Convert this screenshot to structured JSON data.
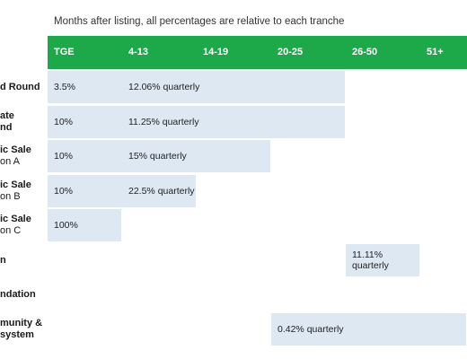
{
  "subtitle": "Months after listing, all percentages are relative to each tranche",
  "columns": [
    "TGE",
    "4-13",
    "14-19",
    "20-25",
    "26-50",
    "51+"
  ],
  "rows": [
    {
      "label_lines": [
        "d Round"
      ],
      "sub": ""
    },
    {
      "label_lines": [
        "ate",
        "nd"
      ],
      "sub": ""
    },
    {
      "label_lines": [
        "ic Sale"
      ],
      "sub": "on A"
    },
    {
      "label_lines": [
        "ic Sale"
      ],
      "sub": "on B"
    },
    {
      "label_lines": [
        "ic Sale"
      ],
      "sub": "on C"
    },
    {
      "label_lines": [
        "n"
      ],
      "sub": ""
    },
    {
      "label_lines": [
        "ndation"
      ],
      "sub": ""
    },
    {
      "label_lines": [
        "munity &",
        "system"
      ],
      "sub": ""
    }
  ],
  "colors": {
    "header": "#1da94a",
    "header_text": "#ffffff",
    "bar": "#dde8f3"
  },
  "chart_data": {
    "type": "table",
    "title": "",
    "subtitle": "Months after listing, all percentages are relative to each tranche",
    "columns": [
      "TGE",
      "4-13",
      "14-19",
      "20-25",
      "26-50",
      "51+"
    ],
    "rows": [
      {
        "row": "d Round",
        "bar_from_col": 0,
        "bar_to_col": 4,
        "cells": [
          {
            "col": 0,
            "text": "3.5%"
          },
          {
            "col": 1,
            "text": "12.06% quarterly"
          }
        ]
      },
      {
        "row": "ate nd",
        "bar_from_col": 0,
        "bar_to_col": 4,
        "cells": [
          {
            "col": 0,
            "text": "10%"
          },
          {
            "col": 1,
            "text": "11.25% quarterly"
          }
        ]
      },
      {
        "row": "ic Sale on A",
        "bar_from_col": 0,
        "bar_to_col": 3,
        "cells": [
          {
            "col": 0,
            "text": "10%"
          },
          {
            "col": 1,
            "text": "15% quarterly"
          }
        ]
      },
      {
        "row": "ic Sale on B",
        "bar_from_col": 0,
        "bar_to_col": 2,
        "cells": [
          {
            "col": 0,
            "text": "10%"
          },
          {
            "col": 1,
            "text": "22.5% quarterly"
          }
        ]
      },
      {
        "row": "ic Sale on C",
        "bar_from_col": 0,
        "bar_to_col": 1,
        "cells": [
          {
            "col": 0,
            "text": "100%"
          }
        ]
      },
      {
        "row": "n",
        "bar_from_col": 4,
        "bar_to_col": 5,
        "cells": [
          {
            "col": 4,
            "text": "11.11% quarterly",
            "lines": [
              "11.11%",
              "quarterly"
            ]
          }
        ]
      },
      {
        "row": "ndation",
        "bar_from_col": null,
        "bar_to_col": null,
        "cells": []
      },
      {
        "row": "munity & system",
        "bar_from_col": 3,
        "bar_to_col": 6,
        "cells": [
          {
            "col": 3,
            "text": "0.42% quarterly"
          }
        ]
      }
    ]
  }
}
